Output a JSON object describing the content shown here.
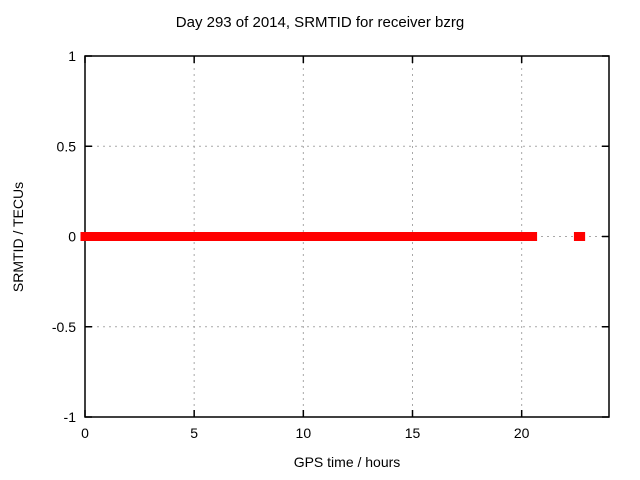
{
  "chart_data": {
    "type": "scatter",
    "title": "Day 293 of 2014, SRMTID for receiver bzrg",
    "xlabel": "GPS time / hours",
    "ylabel": "SRMTID / TECUs",
    "xlim": [
      0,
      24
    ],
    "ylim": [
      -1,
      1
    ],
    "x_ticks": [
      0,
      5,
      10,
      15,
      20
    ],
    "y_ticks": [
      -1,
      -0.5,
      0,
      0.5,
      1
    ],
    "grid": true,
    "legend_position": "none",
    "marker_color": "#ff0000",
    "grid_color": "#a8a8a8",
    "axis_color": "#000000",
    "background_color": "#ffffff",
    "series": [
      {
        "name": "SRMTID",
        "marker": "filled-square",
        "segments": [
          {
            "x_start": 0,
            "x_end": 20.5,
            "y": 0,
            "note": "dense contiguous points at SRMTID = 0"
          },
          {
            "x_start": 22.6,
            "x_end": 22.7,
            "y": 0,
            "note": "isolated point at SRMTID = 0"
          }
        ]
      }
    ]
  }
}
